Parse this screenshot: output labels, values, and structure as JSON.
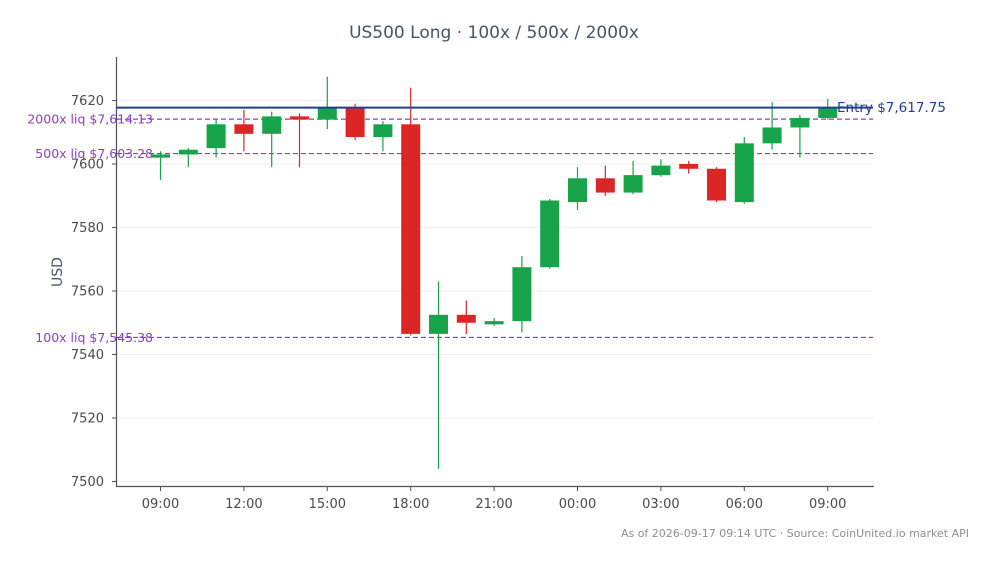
{
  "chart_data": {
    "type": "candlestick",
    "title": "US500 Long · 100x / 500x / 2000x",
    "ylabel": "USD",
    "ylim": [
      7498,
      7634
    ],
    "yticks": [
      7500,
      7520,
      7540,
      7560,
      7580,
      7600,
      7620
    ],
    "xticks": [
      "09:00",
      "12:00",
      "15:00",
      "18:00",
      "21:00",
      "00:00",
      "03:00",
      "06:00",
      "09:00"
    ],
    "grid": "horizontal",
    "colors": {
      "up": "#16a34a",
      "down": "#dc2626",
      "entry": "#1f3f8f",
      "liq": "#8a3fc7"
    },
    "candles": [
      {
        "o": 7602.0,
        "h": 7604.0,
        "l": 7595.0,
        "c": 7603.0
      },
      {
        "o": 7603.0,
        "h": 7605.0,
        "l": 7599.0,
        "c": 7604.5
      },
      {
        "o": 7605.0,
        "h": 7614.0,
        "l": 7602.0,
        "c": 7612.5
      },
      {
        "o": 7612.5,
        "h": 7617.0,
        "l": 7604.0,
        "c": 7609.5
      },
      {
        "o": 7609.5,
        "h": 7616.5,
        "l": 7599.0,
        "c": 7615.0
      },
      {
        "o": 7615.0,
        "h": 7616.0,
        "l": 7599.0,
        "c": 7614.0
      },
      {
        "o": 7614.0,
        "h": 7627.5,
        "l": 7611.0,
        "c": 7617.5
      },
      {
        "o": 7617.5,
        "h": 7619.0,
        "l": 7607.5,
        "c": 7608.5
      },
      {
        "o": 7608.5,
        "h": 7613.5,
        "l": 7604.0,
        "c": 7612.5
      },
      {
        "o": 7612.5,
        "h": 7624.0,
        "l": 7546.0,
        "c": 7546.5
      },
      {
        "o": 7546.5,
        "h": 7563.0,
        "l": 7504.0,
        "c": 7552.5
      },
      {
        "o": 7552.5,
        "h": 7557.0,
        "l": 7546.5,
        "c": 7550.0
      },
      {
        "o": 7549.5,
        "h": 7551.5,
        "l": 7549.0,
        "c": 7550.5
      },
      {
        "o": 7550.5,
        "h": 7571.0,
        "l": 7547.0,
        "c": 7567.5
      },
      {
        "o": 7567.5,
        "h": 7589.0,
        "l": 7567.0,
        "c": 7588.5
      },
      {
        "o": 7588.0,
        "h": 7599.0,
        "l": 7585.5,
        "c": 7595.5
      },
      {
        "o": 7595.5,
        "h": 7599.5,
        "l": 7590.0,
        "c": 7591.0
      },
      {
        "o": 7591.0,
        "h": 7601.0,
        "l": 7590.5,
        "c": 7596.5
      },
      {
        "o": 7596.5,
        "h": 7601.5,
        "l": 7596.0,
        "c": 7599.5
      },
      {
        "o": 7600.0,
        "h": 7601.0,
        "l": 7597.0,
        "c": 7598.5
      },
      {
        "o": 7598.5,
        "h": 7599.0,
        "l": 7588.0,
        "c": 7588.5
      },
      {
        "o": 7588.0,
        "h": 7608.5,
        "l": 7587.5,
        "c": 7606.5
      },
      {
        "o": 7606.5,
        "h": 7619.5,
        "l": 7604.5,
        "c": 7611.5
      },
      {
        "o": 7611.5,
        "h": 7615.5,
        "l": 7602.0,
        "c": 7614.5
      },
      {
        "o": 7614.5,
        "h": 7620.5,
        "l": 7614.0,
        "c": 7617.5
      }
    ],
    "entry": {
      "value": 7617.75,
      "label": "Entry $7,617.75"
    },
    "liquidations": [
      {
        "value": 7614.13,
        "label": "2000x liq $7,614.13"
      },
      {
        "value": 7603.28,
        "label": "500x liq $7,603.28"
      },
      {
        "value": 7545.38,
        "label": "100x liq $7,545.38"
      }
    ]
  },
  "footer": "As of 2026-09-17 09:14 UTC · Source: CoinUnited.io market API"
}
